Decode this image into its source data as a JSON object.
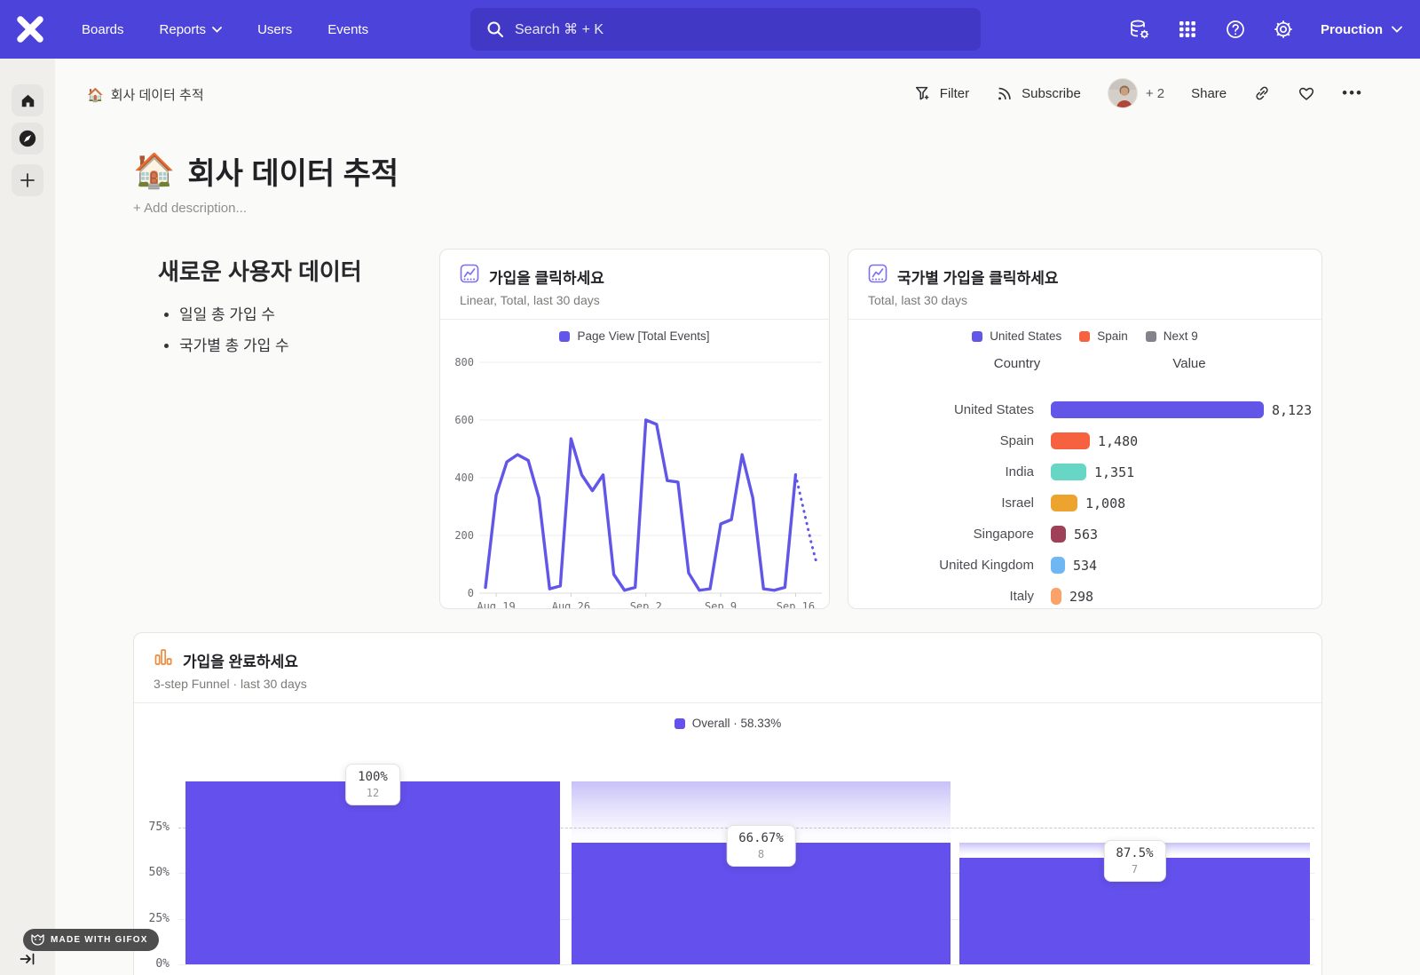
{
  "nav": {
    "logo_icon": "mixpanel-x-logo",
    "links": [
      {
        "label": "Boards"
      },
      {
        "label": "Reports",
        "icon": "chevron-down-icon"
      },
      {
        "label": "Users"
      },
      {
        "label": "Events"
      }
    ],
    "search": {
      "icon": "search-icon",
      "placeholder": "Search  ⌘ + K"
    },
    "right_icons": [
      "data-management-icon",
      "apps-grid-icon",
      "help-icon",
      "settings-gear-icon"
    ],
    "project": {
      "label": "Prouction",
      "icon": "chevron-down-icon"
    }
  },
  "sidebar": {
    "icons": [
      "home-icon",
      "compass-icon",
      "plus-icon"
    ]
  },
  "breadcrumb": {
    "emoji": "🏠",
    "label": "회사 데이터 추적"
  },
  "toolbar": {
    "filter_label": "Filter",
    "filter_icon": "funnel-plus-icon",
    "subscribe_label": "Subscribe",
    "subscribe_icon": "rss-icon",
    "collaborators_more": "+ 2",
    "share_label": "Share",
    "link_icon": "link-icon",
    "favorite_icon": "heart-icon",
    "more_icon": "ellipsis-icon"
  },
  "page": {
    "emoji": "🏠",
    "title": "회사 데이터 추적",
    "add_description": "+ Add description..."
  },
  "text_widget": {
    "heading": "새로운 사용자 데이터",
    "bullets": [
      "일일 총 가입 수",
      "국가별 총 가입 수"
    ]
  },
  "chart_data": [
    {
      "type": "line",
      "icon": "line-chart-icon",
      "title": "가입을 클릭하세요",
      "subtitle": "Linear, Total, last 30 days",
      "legend": [
        {
          "label": "Page View [Total Events]",
          "color": "#6156e8"
        }
      ],
      "color": "#6156e8",
      "ylim": [
        0,
        800
      ],
      "y_ticks": [
        0,
        200,
        400,
        600,
        800
      ],
      "x_ticks": [
        "Aug 19",
        "Aug 26",
        "Sep 2",
        "Sep 9",
        "Sep 16"
      ],
      "x_tick_day_index": [
        1,
        8,
        15,
        22,
        29
      ],
      "values": [
        20,
        340,
        455,
        480,
        460,
        330,
        15,
        25,
        535,
        410,
        355,
        410,
        65,
        10,
        20,
        600,
        585,
        390,
        385,
        70,
        10,
        15,
        240,
        255,
        480,
        330,
        15,
        10,
        20,
        410
      ],
      "dotted_tail": [
        330,
        250,
        170,
        100
      ],
      "grid": true,
      "legend_position": "top"
    },
    {
      "type": "bar",
      "icon": "bar-chart-icon",
      "title": "국가별 가입을 클릭하세요",
      "subtitle": "Total, last 30 days",
      "legend": [
        {
          "label": "United States",
          "color": "#6156e8"
        },
        {
          "label": "Spain",
          "color": "#f6613f"
        },
        {
          "label": "Next 9",
          "color": "#83838b"
        }
      ],
      "columns": [
        "Country",
        "Value"
      ],
      "rows": [
        {
          "country": "United States",
          "value": "8,123",
          "numeric": 8123,
          "color": "#6156e8"
        },
        {
          "country": "Spain",
          "value": "1,480",
          "numeric": 1480,
          "color": "#f6613f"
        },
        {
          "country": "India",
          "value": "1,351",
          "numeric": 1351,
          "color": "#68d6c4"
        },
        {
          "country": "Israel",
          "value": "1,008",
          "numeric": 1008,
          "color": "#eda42e"
        },
        {
          "country": "Singapore",
          "value": "563",
          "numeric": 563,
          "color": "#9e4158"
        },
        {
          "country": "United Kingdom",
          "value": "534",
          "numeric": 534,
          "color": "#6fb7f2"
        },
        {
          "country": "Italy",
          "value": "298",
          "numeric": 298,
          "color": "#f9a369"
        }
      ],
      "partial_row": {
        "color": "#4a5fd0"
      }
    },
    {
      "type": "funnel",
      "icon": "funnel-chart-icon",
      "title": "가입을 완료하세요",
      "subtitle": "3-step Funnel · last 30 days",
      "legend_label": "Overall · 58.33%",
      "color": "#6450ec",
      "y_ticks": [
        "0%",
        "25%",
        "50%",
        "75%"
      ],
      "steps": [
        {
          "pct": "100%",
          "count": "12",
          "pct_value": 100,
          "ghost_from": null
        },
        {
          "pct": "66.67%",
          "count": "8",
          "pct_value": 66.67,
          "ghost_from": 100
        },
        {
          "pct": "87.5%",
          "count": "7",
          "pct_value": 58.33,
          "ghost_from": 66.67
        }
      ]
    }
  ],
  "footer_badge": {
    "label": "MADE WITH GIFOX",
    "icon": "fox-icon",
    "collapse_icon": "collapse-sidebar-icon"
  }
}
